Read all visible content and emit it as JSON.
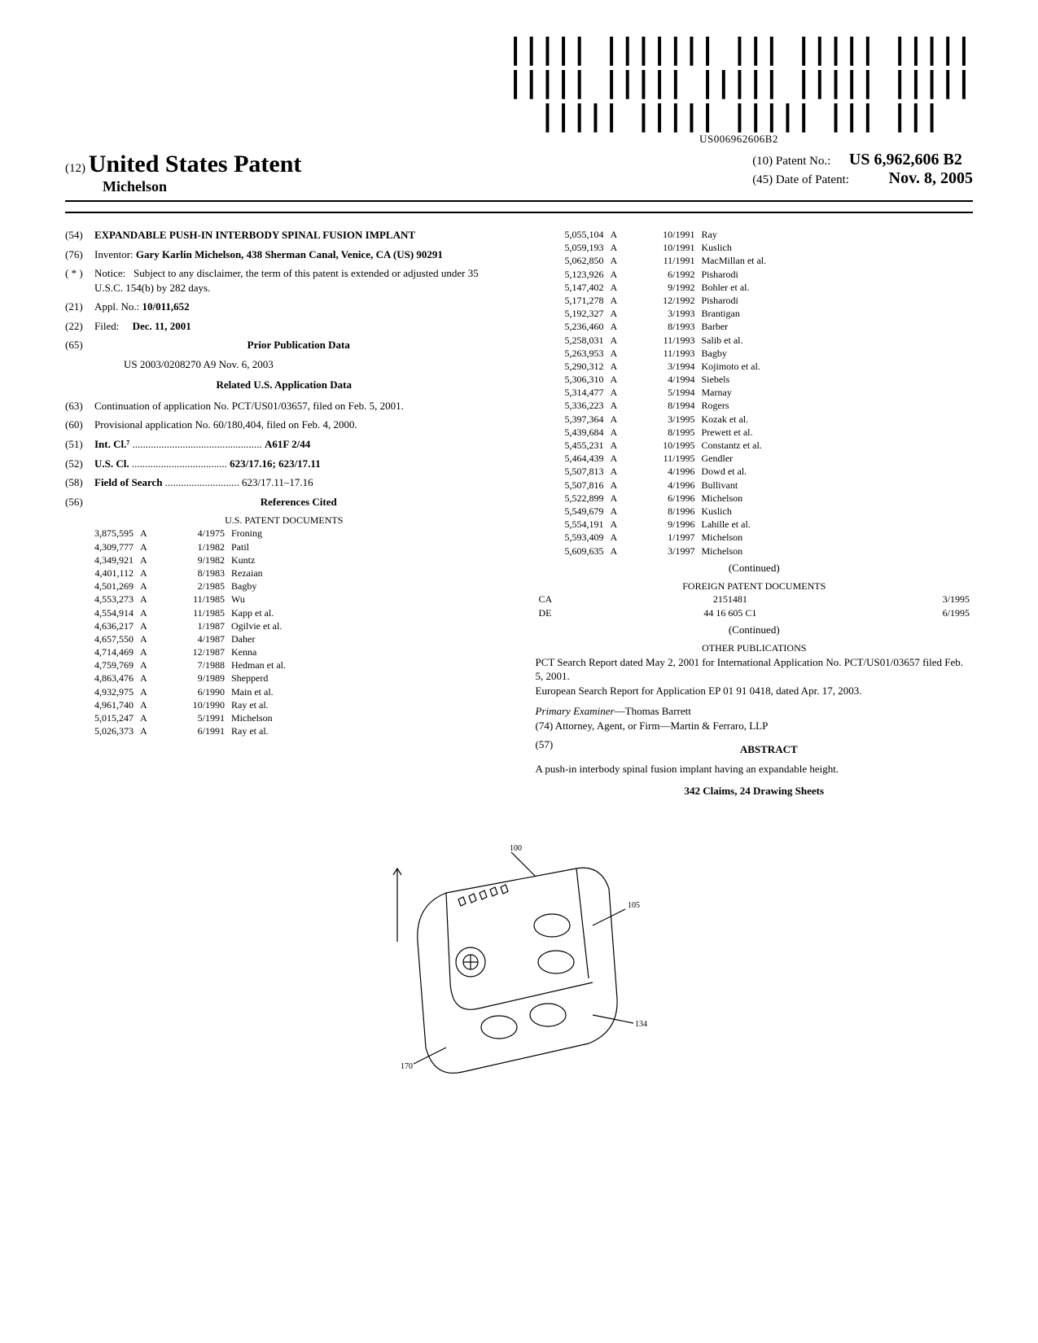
{
  "barcode_text": "US006962606B2",
  "header": {
    "doc_type_prefix": "(12)",
    "doc_type": "United States Patent",
    "author": "Michelson",
    "patent_no_label": "(10) Patent No.:",
    "patent_no": "US 6,962,606 B2",
    "date_label": "(45) Date of Patent:",
    "date": "Nov. 8, 2005"
  },
  "left": {
    "title_num": "(54)",
    "title": "EXPANDABLE PUSH-IN INTERBODY SPINAL FUSION IMPLANT",
    "inventor_num": "(76)",
    "inventor_label": "Inventor:",
    "inventor": "Gary Karlin Michelson, 438 Sherman Canal, Venice, CA (US) 90291",
    "notice_num": "( * )",
    "notice_label": "Notice:",
    "notice": "Subject to any disclaimer, the term of this patent is extended or adjusted under 35 U.S.C. 154(b) by 282 days.",
    "appl_num": "(21)",
    "appl_label": "Appl. No.:",
    "appl": "10/011,652",
    "filed_num": "(22)",
    "filed_label": "Filed:",
    "filed": "Dec. 11, 2001",
    "prior_num": "(65)",
    "prior_title": "Prior Publication Data",
    "prior_text": "US 2003/0208270 A9 Nov. 6, 2003",
    "related_title": "Related U.S. Application Data",
    "cont_num": "(63)",
    "cont_text": "Continuation of application No. PCT/US01/03657, filed on Feb. 5, 2001.",
    "prov_num": "(60)",
    "prov_text": "Provisional application No. 60/180,404, filed on Feb. 4, 2000.",
    "intcl_num": "(51)",
    "intcl_label": "Int. Cl.⁷",
    "intcl": "A61F 2/44",
    "uscl_num": "(52)",
    "uscl_label": "U.S. Cl.",
    "uscl": "623/17.16; 623/17.11",
    "field_num": "(58)",
    "field_label": "Field of Search",
    "field": "623/17.11–17.16",
    "refs_num": "(56)",
    "refs_title": "References Cited",
    "us_docs_title": "U.S. PATENT DOCUMENTS",
    "us_docs": [
      [
        "3,875,595",
        "A",
        "4/1975",
        "Froning"
      ],
      [
        "4,309,777",
        "A",
        "1/1982",
        "Patil"
      ],
      [
        "4,349,921",
        "A",
        "9/1982",
        "Kuntz"
      ],
      [
        "4,401,112",
        "A",
        "8/1983",
        "Rezaian"
      ],
      [
        "4,501,269",
        "A",
        "2/1985",
        "Bagby"
      ],
      [
        "4,553,273",
        "A",
        "11/1985",
        "Wu"
      ],
      [
        "4,554,914",
        "A",
        "11/1985",
        "Kapp et al."
      ],
      [
        "4,636,217",
        "A",
        "1/1987",
        "Ogilvie et al."
      ],
      [
        "4,657,550",
        "A",
        "4/1987",
        "Daher"
      ],
      [
        "4,714,469",
        "A",
        "12/1987",
        "Kenna"
      ],
      [
        "4,759,769",
        "A",
        "7/1988",
        "Hedman et al."
      ],
      [
        "4,863,476",
        "A",
        "9/1989",
        "Shepperd"
      ],
      [
        "4,932,975",
        "A",
        "6/1990",
        "Main et al."
      ],
      [
        "4,961,740",
        "A",
        "10/1990",
        "Ray et al."
      ],
      [
        "5,015,247",
        "A",
        "5/1991",
        "Michelson"
      ],
      [
        "5,026,373",
        "A",
        "6/1991",
        "Ray et al."
      ]
    ]
  },
  "right": {
    "us_docs": [
      [
        "5,055,104",
        "A",
        "10/1991",
        "Ray"
      ],
      [
        "5,059,193",
        "A",
        "10/1991",
        "Kuslich"
      ],
      [
        "5,062,850",
        "A",
        "11/1991",
        "MacMillan et al."
      ],
      [
        "5,123,926",
        "A",
        "6/1992",
        "Pisharodi"
      ],
      [
        "5,147,402",
        "A",
        "9/1992",
        "Bohler et al."
      ],
      [
        "5,171,278",
        "A",
        "12/1992",
        "Pisharodi"
      ],
      [
        "5,192,327",
        "A",
        "3/1993",
        "Brantigan"
      ],
      [
        "5,236,460",
        "A",
        "8/1993",
        "Barber"
      ],
      [
        "5,258,031",
        "A",
        "11/1993",
        "Salib et al."
      ],
      [
        "5,263,953",
        "A",
        "11/1993",
        "Bagby"
      ],
      [
        "5,290,312",
        "A",
        "3/1994",
        "Kojimoto et al."
      ],
      [
        "5,306,310",
        "A",
        "4/1994",
        "Siebels"
      ],
      [
        "5,314,477",
        "A",
        "5/1994",
        "Marnay"
      ],
      [
        "5,336,223",
        "A",
        "8/1994",
        "Rogers"
      ],
      [
        "5,397,364",
        "A",
        "3/1995",
        "Kozak et al."
      ],
      [
        "5,439,684",
        "A",
        "8/1995",
        "Prewett et al."
      ],
      [
        "5,455,231",
        "A",
        "10/1995",
        "Constantz et al."
      ],
      [
        "5,464,439",
        "A",
        "11/1995",
        "Gendler"
      ],
      [
        "5,507,813",
        "A",
        "4/1996",
        "Dowd et al."
      ],
      [
        "5,507,816",
        "A",
        "4/1996",
        "Bullivant"
      ],
      [
        "5,522,899",
        "A",
        "6/1996",
        "Michelson"
      ],
      [
        "5,549,679",
        "A",
        "8/1996",
        "Kuslich"
      ],
      [
        "5,554,191",
        "A",
        "9/1996",
        "Lahille et al."
      ],
      [
        "5,593,409",
        "A",
        "1/1997",
        "Michelson"
      ],
      [
        "5,609,635",
        "A",
        "3/1997",
        "Michelson"
      ]
    ],
    "continued": "(Continued)",
    "foreign_title": "FOREIGN PATENT DOCUMENTS",
    "foreign": [
      [
        "CA",
        "2151481",
        "3/1995"
      ],
      [
        "DE",
        "44 16 605 C1",
        "6/1995"
      ]
    ],
    "other_title": "OTHER PUBLICATIONS",
    "other1": "PCT Search Report dated May 2, 2001 for International Application No. PCT/US01/03657 filed Feb. 5, 2001.",
    "other2": "European Search Report for Application EP 01 91 0418, dated Apr. 17, 2003.",
    "examiner_label": "Primary Examiner",
    "examiner": "—Thomas Barrett",
    "attorney_label": "(74) Attorney, Agent, or Firm",
    "attorney": "—Martin & Ferraro, LLP",
    "abstract_num": "(57)",
    "abstract_head": "ABSTRACT",
    "abstract_text": "A push-in interbody spinal fusion implant having an expandable height.",
    "claims": "342 Claims, 24 Drawing Sheets"
  }
}
